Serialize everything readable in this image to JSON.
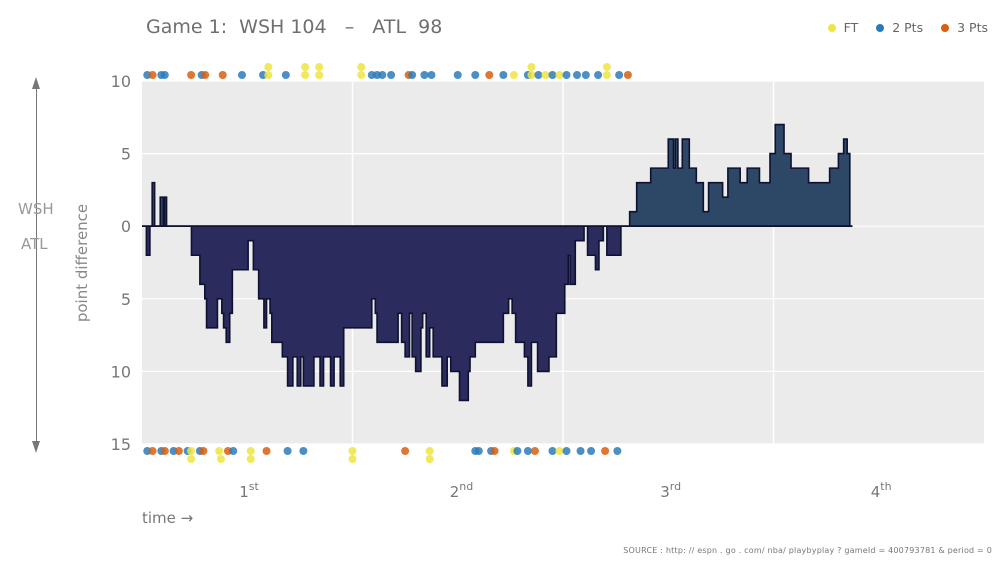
{
  "header": {
    "title": "Game 1:  WSH 104   –   ATL  98"
  },
  "legend": [
    {
      "label": "FT",
      "color": "#f0e442"
    },
    {
      "label": "2 Pts",
      "color": "#2b7bba"
    },
    {
      "label": "3 Pts",
      "color": "#d95f0e"
    }
  ],
  "side_labels": {
    "top": "WSH",
    "bottom": "ATL"
  },
  "source": "SOURCE :  http: // espn . go . com/ nba/ playbyplay ? gameId = 400793781 & period = 0",
  "chart_data": {
    "type": "area",
    "title": "Game 1:  WSH 104   –   ATL  98",
    "xlabel": "time →",
    "ylabel": "point difference",
    "ylim": [
      -15,
      10
    ],
    "xlim": [
      0,
      48
    ],
    "yticks": [
      {
        "value": 10,
        "label": "10"
      },
      {
        "value": 5,
        "label": "5"
      },
      {
        "value": 0,
        "label": "0"
      },
      {
        "value": -5,
        "label": "5"
      },
      {
        "value": -10,
        "label": "10"
      },
      {
        "value": -15,
        "label": "15"
      }
    ],
    "periods": [
      {
        "base": "1",
        "sup": "st"
      },
      {
        "base": "2",
        "sup": "nd"
      },
      {
        "base": "3",
        "sup": "rd"
      },
      {
        "base": "4",
        "sup": "th"
      }
    ],
    "grid": true,
    "colors": {
      "wsh": "#2d4766",
      "atl": "#2b2b5e",
      "edge": "#0e1230",
      "panel": "#ebebeb"
    },
    "series": [
      {
        "name": "point difference",
        "points": [
          [
            0.0,
            0
          ],
          [
            0.25,
            -2
          ],
          [
            0.45,
            0
          ],
          [
            0.55,
            0
          ],
          [
            0.58,
            3
          ],
          [
            0.72,
            0
          ],
          [
            1.0,
            0
          ],
          [
            1.04,
            2
          ],
          [
            1.22,
            0
          ],
          [
            1.28,
            2
          ],
          [
            1.4,
            0
          ],
          [
            2.8,
            0
          ],
          [
            2.82,
            -2
          ],
          [
            3.2,
            -2
          ],
          [
            3.3,
            -4
          ],
          [
            3.58,
            -5
          ],
          [
            3.68,
            -7
          ],
          [
            4.3,
            -5
          ],
          [
            4.55,
            -6
          ],
          [
            4.65,
            -7
          ],
          [
            4.8,
            -8
          ],
          [
            5.0,
            -6
          ],
          [
            5.15,
            -3
          ],
          [
            5.8,
            -3
          ],
          [
            6.05,
            -1
          ],
          [
            6.3,
            -1
          ],
          [
            6.35,
            -3
          ],
          [
            6.65,
            -5
          ],
          [
            6.95,
            -7
          ],
          [
            7.1,
            -5
          ],
          [
            7.3,
            -6
          ],
          [
            7.4,
            -8
          ],
          [
            8.0,
            -9
          ],
          [
            8.3,
            -11
          ],
          [
            8.6,
            -9
          ],
          [
            8.85,
            -11
          ],
          [
            9.05,
            -9
          ],
          [
            9.2,
            -11
          ],
          [
            9.8,
            -9
          ],
          [
            10.15,
            -11
          ],
          [
            10.35,
            -9
          ],
          [
            10.75,
            -11
          ],
          [
            10.95,
            -9
          ],
          [
            11.3,
            -11
          ],
          [
            11.5,
            -7
          ],
          [
            12.9,
            -7
          ],
          [
            13.1,
            -5
          ],
          [
            13.3,
            -6
          ],
          [
            13.4,
            -8
          ],
          [
            14.6,
            -6
          ],
          [
            14.8,
            -8
          ],
          [
            15.0,
            -9
          ],
          [
            15.25,
            -6
          ],
          [
            15.4,
            -9
          ],
          [
            15.6,
            -10
          ],
          [
            15.9,
            -7
          ],
          [
            16.0,
            -6
          ],
          [
            16.2,
            -9
          ],
          [
            16.4,
            -7
          ],
          [
            16.6,
            -9
          ],
          [
            17.1,
            -11
          ],
          [
            17.4,
            -9
          ],
          [
            17.6,
            -10
          ],
          [
            18.1,
            -12
          ],
          [
            18.6,
            -10
          ],
          [
            18.7,
            -9
          ],
          [
            19.0,
            -8
          ],
          [
            20.4,
            -8
          ],
          [
            20.6,
            -6
          ],
          [
            20.9,
            -5
          ],
          [
            21.1,
            -6
          ],
          [
            21.3,
            -8
          ],
          [
            21.8,
            -9
          ],
          [
            22.0,
            -11
          ],
          [
            22.2,
            -8
          ],
          [
            22.55,
            -10
          ],
          [
            23.2,
            -9
          ],
          [
            23.5,
            -9
          ],
          [
            23.62,
            -6
          ],
          [
            24.1,
            -4
          ],
          [
            24.3,
            -2
          ],
          [
            24.4,
            -4
          ],
          [
            24.7,
            -1
          ],
          [
            25.2,
            0
          ],
          [
            25.35,
            0
          ],
          [
            25.4,
            -2
          ],
          [
            25.85,
            -3
          ],
          [
            26.05,
            -1
          ],
          [
            26.3,
            0
          ],
          [
            26.4,
            0
          ],
          [
            26.5,
            -2
          ],
          [
            27.3,
            0
          ],
          [
            27.7,
            0
          ],
          [
            27.8,
            1
          ],
          [
            28.1,
            1
          ],
          [
            28.2,
            3
          ],
          [
            29.0,
            4
          ],
          [
            30.0,
            6
          ],
          [
            30.3,
            4
          ],
          [
            30.4,
            6
          ],
          [
            30.55,
            4
          ],
          [
            30.8,
            6
          ],
          [
            31.2,
            4
          ],
          [
            31.6,
            3
          ],
          [
            32.0,
            1
          ],
          [
            32.3,
            3
          ],
          [
            33.1,
            2
          ],
          [
            33.4,
            4
          ],
          [
            34.1,
            3
          ],
          [
            34.5,
            4
          ],
          [
            35.2,
            3
          ],
          [
            35.8,
            5
          ],
          [
            36.1,
            7
          ],
          [
            36.6,
            5
          ],
          [
            37.0,
            4
          ],
          [
            38.0,
            3
          ],
          [
            39.2,
            4
          ],
          [
            39.7,
            5
          ],
          [
            40.0,
            6
          ],
          [
            40.2,
            5
          ],
          [
            40.35,
            0
          ],
          [
            40.5,
            0
          ]
        ]
      }
    ],
    "events": {
      "wsh": [
        {
          "t": 0.3,
          "type": "2"
        },
        {
          "t": 0.6,
          "type": "3"
        },
        {
          "t": 1.1,
          "type": "2"
        },
        {
          "t": 1.3,
          "type": "2"
        },
        {
          "t": 2.8,
          "type": "3"
        },
        {
          "t": 3.4,
          "type": "2"
        },
        {
          "t": 3.6,
          "type": "3"
        },
        {
          "t": 4.6,
          "type": "3"
        },
        {
          "t": 5.7,
          "type": "2"
        },
        {
          "t": 6.9,
          "type": "2"
        },
        {
          "t": 7.2,
          "type": "FT"
        },
        {
          "t": 7.2,
          "type": "FT",
          "row": 2
        },
        {
          "t": 8.2,
          "type": "2"
        },
        {
          "t": 9.3,
          "type": "FT"
        },
        {
          "t": 9.3,
          "type": "FT",
          "row": 2
        },
        {
          "t": 10.1,
          "type": "FT"
        },
        {
          "t": 10.1,
          "type": "FT",
          "row": 2
        },
        {
          "t": 12.5,
          "type": "FT"
        },
        {
          "t": 12.5,
          "type": "FT",
          "row": 2
        },
        {
          "t": 13.1,
          "type": "2"
        },
        {
          "t": 13.4,
          "type": "2"
        },
        {
          "t": 13.7,
          "type": "2"
        },
        {
          "t": 14.2,
          "type": "2"
        },
        {
          "t": 15.2,
          "type": "3"
        },
        {
          "t": 15.4,
          "type": "2"
        },
        {
          "t": 16.1,
          "type": "2"
        },
        {
          "t": 16.5,
          "type": "2"
        },
        {
          "t": 18.0,
          "type": "2"
        },
        {
          "t": 19.0,
          "type": "2"
        },
        {
          "t": 19.8,
          "type": "3"
        },
        {
          "t": 20.6,
          "type": "2"
        },
        {
          "t": 21.2,
          "type": "FT"
        },
        {
          "t": 22.0,
          "type": "2"
        },
        {
          "t": 22.2,
          "type": "FT"
        },
        {
          "t": 22.2,
          "type": "FT",
          "row": 2
        },
        {
          "t": 22.6,
          "type": "2"
        },
        {
          "t": 23.0,
          "type": "FT"
        },
        {
          "t": 23.4,
          "type": "2"
        },
        {
          "t": 23.8,
          "type": "FT"
        },
        {
          "t": 24.2,
          "type": "2"
        },
        {
          "t": 24.8,
          "type": "2"
        },
        {
          "t": 25.3,
          "type": "2"
        },
        {
          "t": 26.0,
          "type": "2"
        },
        {
          "t": 26.5,
          "type": "FT"
        },
        {
          "t": 26.5,
          "type": "FT",
          "row": 2
        },
        {
          "t": 27.2,
          "type": "2"
        },
        {
          "t": 27.7,
          "type": "3"
        }
      ],
      "atl": [
        {
          "t": 0.3,
          "type": "2"
        },
        {
          "t": 0.6,
          "type": "3"
        },
        {
          "t": 1.1,
          "type": "2"
        },
        {
          "t": 1.3,
          "type": "3"
        },
        {
          "t": 1.8,
          "type": "2"
        },
        {
          "t": 2.1,
          "type": "3"
        },
        {
          "t": 2.6,
          "type": "2"
        },
        {
          "t": 2.8,
          "type": "FT"
        },
        {
          "t": 2.8,
          "type": "FT",
          "row": 2
        },
        {
          "t": 3.3,
          "type": "2"
        },
        {
          "t": 3.5,
          "type": "3"
        },
        {
          "t": 4.4,
          "type": "FT"
        },
        {
          "t": 4.5,
          "type": "FT",
          "row": 2
        },
        {
          "t": 4.9,
          "type": "3"
        },
        {
          "t": 5.2,
          "type": "2"
        },
        {
          "t": 6.2,
          "type": "FT"
        },
        {
          "t": 6.2,
          "type": "FT",
          "row": 2
        },
        {
          "t": 7.1,
          "type": "3"
        },
        {
          "t": 8.3,
          "type": "2"
        },
        {
          "t": 9.2,
          "type": "2"
        },
        {
          "t": 12.0,
          "type": "FT"
        },
        {
          "t": 12.0,
          "type": "FT",
          "row": 2
        },
        {
          "t": 15.0,
          "type": "3"
        },
        {
          "t": 16.4,
          "type": "FT"
        },
        {
          "t": 16.4,
          "type": "FT",
          "row": 2
        },
        {
          "t": 19.0,
          "type": "2"
        },
        {
          "t": 19.2,
          "type": "2"
        },
        {
          "t": 19.9,
          "type": "2"
        },
        {
          "t": 20.1,
          "type": "3"
        },
        {
          "t": 21.2,
          "type": "FT"
        },
        {
          "t": 21.4,
          "type": "2"
        },
        {
          "t": 22.0,
          "type": "2"
        },
        {
          "t": 22.4,
          "type": "3"
        },
        {
          "t": 23.4,
          "type": "2"
        },
        {
          "t": 23.8,
          "type": "FT"
        },
        {
          "t": 24.2,
          "type": "2"
        },
        {
          "t": 25.0,
          "type": "2"
        },
        {
          "t": 25.6,
          "type": "2"
        },
        {
          "t": 26.4,
          "type": "3"
        },
        {
          "t": 27.1,
          "type": "2"
        }
      ]
    }
  }
}
